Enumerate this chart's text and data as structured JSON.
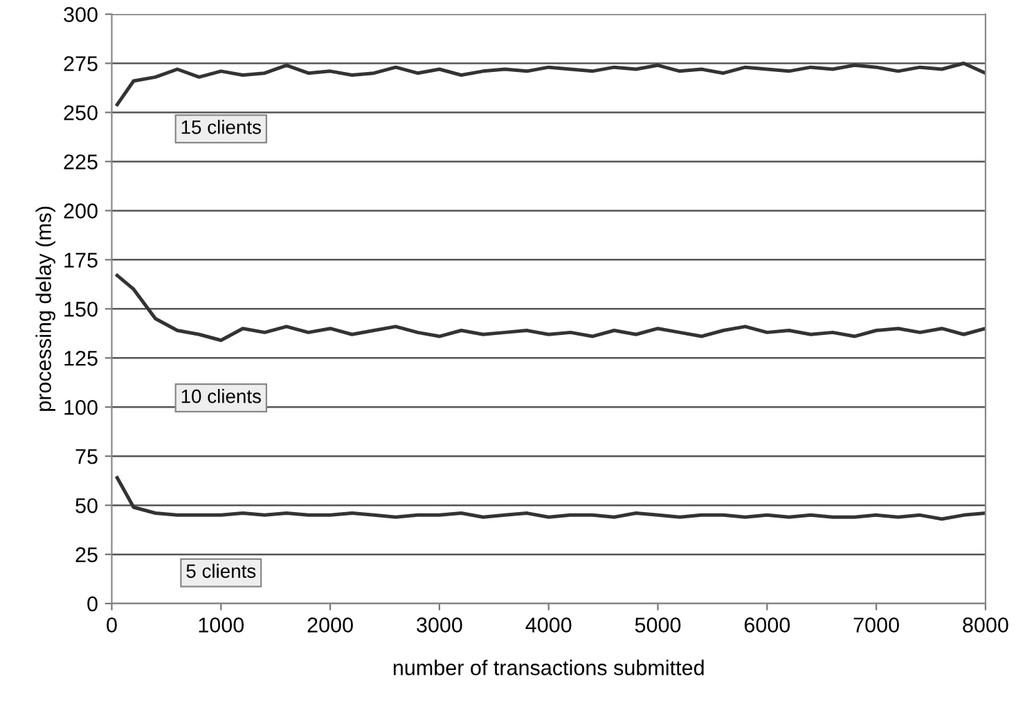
{
  "chart_data": {
    "type": "line",
    "xlabel": "number of transactions submitted",
    "ylabel": "processing delay (ms)",
    "x": [
      50,
      200,
      400,
      600,
      800,
      1000,
      1200,
      1400,
      1600,
      1800,
      2000,
      2200,
      2400,
      2600,
      2800,
      3000,
      3200,
      3400,
      3600,
      3800,
      4000,
      4200,
      4400,
      4600,
      4800,
      5000,
      5200,
      5400,
      5600,
      5800,
      6000,
      6200,
      6400,
      6600,
      6800,
      7000,
      7200,
      7400,
      7600,
      7800,
      8000
    ],
    "series": [
      {
        "color": "#333333",
        "values": [
          254,
          266,
          268,
          272,
          268,
          271,
          269,
          270,
          274,
          270,
          271,
          269,
          270,
          273,
          270,
          272,
          269,
          271,
          272,
          271,
          273,
          272,
          271,
          273,
          272,
          274,
          271,
          272,
          270,
          273,
          272,
          271,
          273,
          272,
          274,
          273,
          271,
          273,
          272,
          275,
          270
        ]
      },
      {
        "color": "#333333",
        "values": [
          167,
          160,
          145,
          139,
          137,
          134,
          140,
          138,
          141,
          138,
          140,
          137,
          139,
          141,
          138,
          136,
          139,
          137,
          138,
          139,
          137,
          138,
          136,
          139,
          137,
          140,
          138,
          136,
          139,
          141,
          138,
          139,
          137,
          138,
          136,
          139,
          140,
          138,
          140,
          137,
          140
        ]
      },
      {
        "color": "#333333",
        "values": [
          64,
          49,
          46,
          45,
          45,
          45,
          46,
          45,
          46,
          45,
          45,
          46,
          45,
          44,
          45,
          45,
          46,
          44,
          45,
          46,
          44,
          45,
          45,
          44,
          46,
          45,
          44,
          45,
          45,
          44,
          45,
          44,
          45,
          44,
          44,
          45,
          44,
          45,
          43,
          45,
          46
        ]
      }
    ],
    "annotations": [
      "15 clients",
      "10 clients",
      "5 clients"
    ],
    "xlim": [
      0,
      8000
    ],
    "xticks": [
      0,
      1000,
      2000,
      3000,
      4000,
      5000,
      6000,
      7000,
      8000
    ],
    "ylim": [
      0,
      300
    ],
    "yticks": [
      0,
      25,
      50,
      75,
      100,
      125,
      150,
      175,
      200,
      225,
      250,
      275,
      300
    ],
    "grid": "y",
    "marker": "none",
    "line_style": "solid"
  }
}
